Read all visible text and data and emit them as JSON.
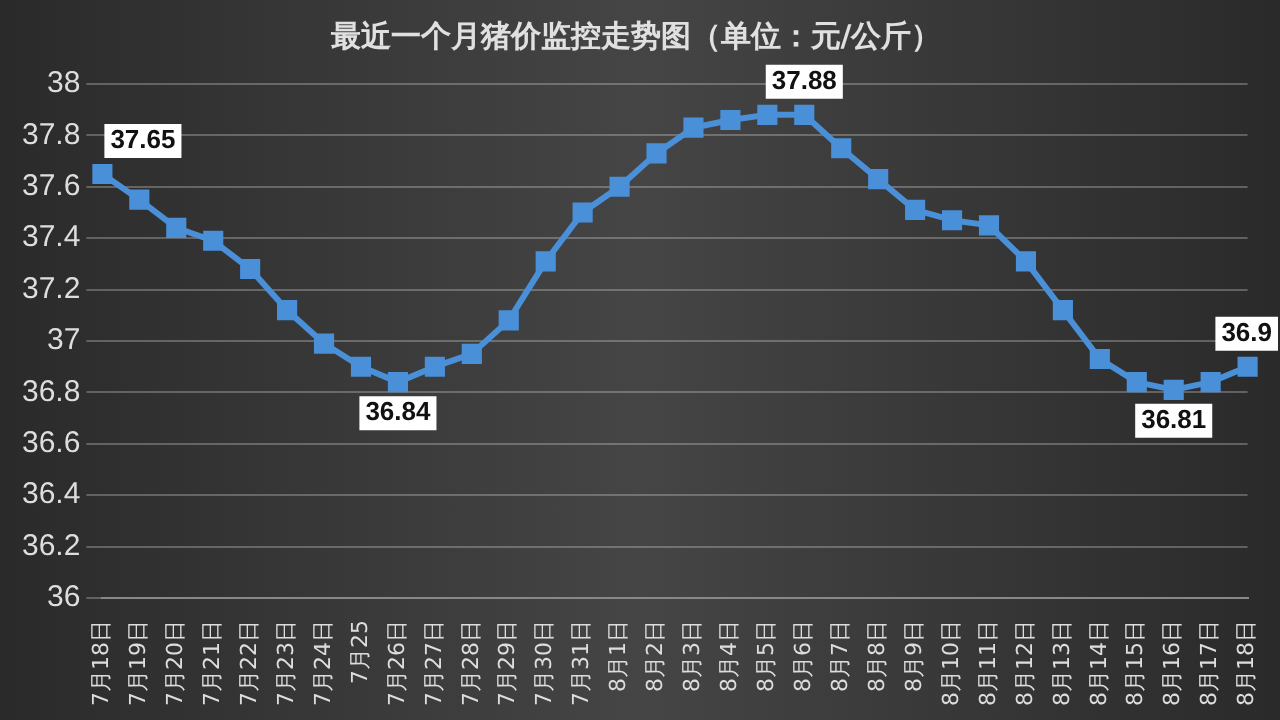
{
  "chart_data": {
    "type": "line",
    "title": "最近一个月猪价监控走势图（单位：元/公斤）",
    "categories": [
      "7月18日",
      "7月19日",
      "7月20日",
      "7月21日",
      "7月22日",
      "7月23日",
      "7月24日",
      "7月25",
      "7月26日",
      "7月27日",
      "7月28日",
      "7月29日",
      "7月30日",
      "7月31日",
      "8月1日",
      "8月2日",
      "8月3日",
      "8月4日",
      "8月5日",
      "8月6日",
      "8月7日",
      "8月8日",
      "8月9日",
      "8月10日",
      "8月11日",
      "8月12日",
      "8月13日",
      "8月14日",
      "8月15日",
      "8月16日",
      "8月17日",
      "8月18日"
    ],
    "series": [
      {
        "color": "#4a90d9",
        "values": [
          37.65,
          37.55,
          37.44,
          37.39,
          37.28,
          37.12,
          36.99,
          36.9,
          36.84,
          36.9,
          36.95,
          37.08,
          37.31,
          37.5,
          37.6,
          37.73,
          37.83,
          37.86,
          37.88,
          37.88,
          37.75,
          37.63,
          37.51,
          37.47,
          37.45,
          37.31,
          37.12,
          36.93,
          36.84,
          36.81,
          36.84,
          36.9
        ],
        "value_labels": [
          "37.65",
          null,
          null,
          null,
          null,
          null,
          null,
          null,
          "36.84",
          null,
          null,
          null,
          null,
          null,
          null,
          null,
          null,
          null,
          null,
          "37.88",
          null,
          null,
          null,
          null,
          null,
          null,
          null,
          null,
          null,
          "36.81",
          null,
          "36.9"
        ]
      }
    ],
    "ylim": [
      36,
      38
    ],
    "yticks": [
      36,
      36.2,
      36.4,
      36.6,
      36.8,
      37,
      37.2,
      37.4,
      37.6,
      37.8,
      38
    ],
    "grid": "y",
    "marker": "square",
    "line_style": "solid",
    "legend": false
  }
}
